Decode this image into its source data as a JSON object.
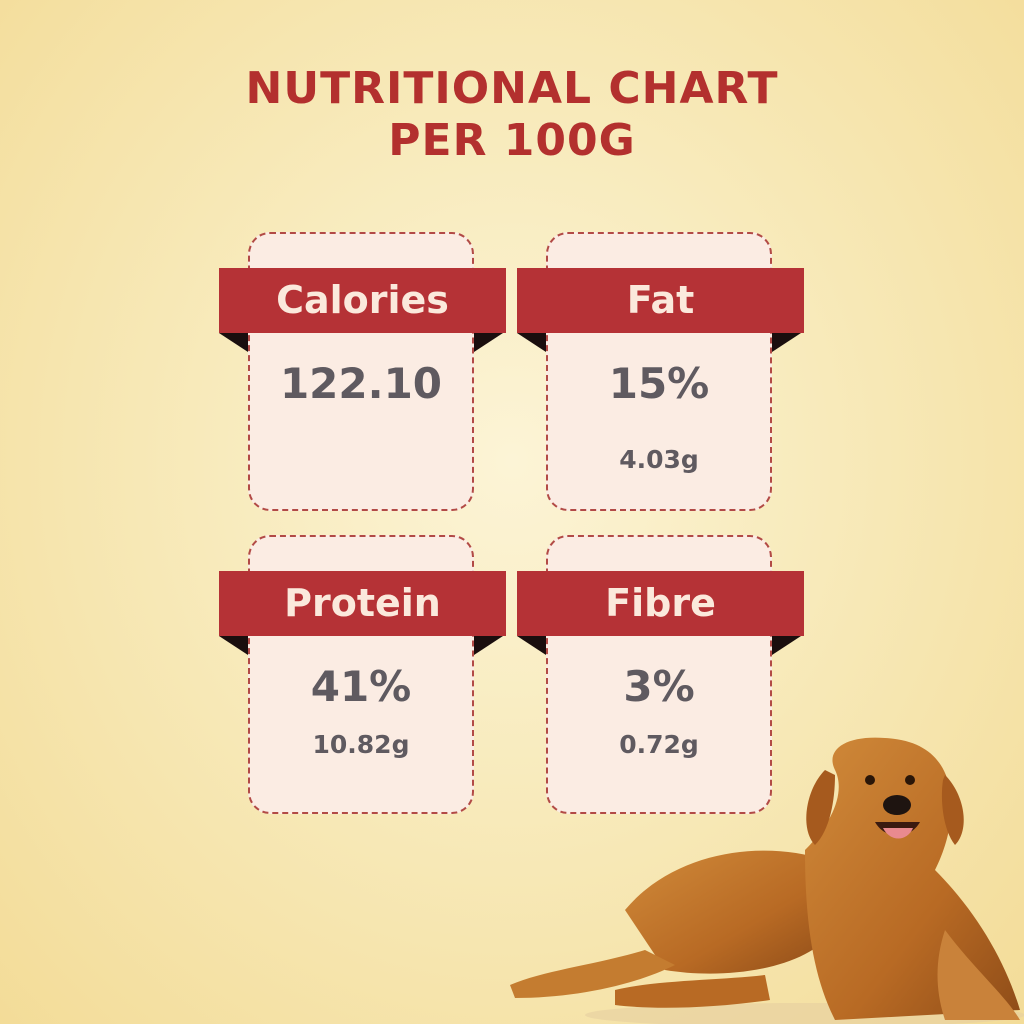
{
  "title": {
    "line1": "NUTRITIONAL CHART",
    "line2": "PER 100G"
  },
  "colors": {
    "accent": "#b53236",
    "card_bg": "#fbece3",
    "value_text": "#5f5a60",
    "background": "#f8ebbd"
  },
  "cards": [
    {
      "label": "Calories",
      "value": "122.10",
      "amount": ""
    },
    {
      "label": "Fat",
      "value": "15%",
      "amount": "4.03g"
    },
    {
      "label": "Protein",
      "value": "41%",
      "amount": "10.82g"
    },
    {
      "label": "Fibre",
      "value": "3%",
      "amount": "0.72g"
    }
  ],
  "image": {
    "subject": "golden-retriever-dog"
  }
}
